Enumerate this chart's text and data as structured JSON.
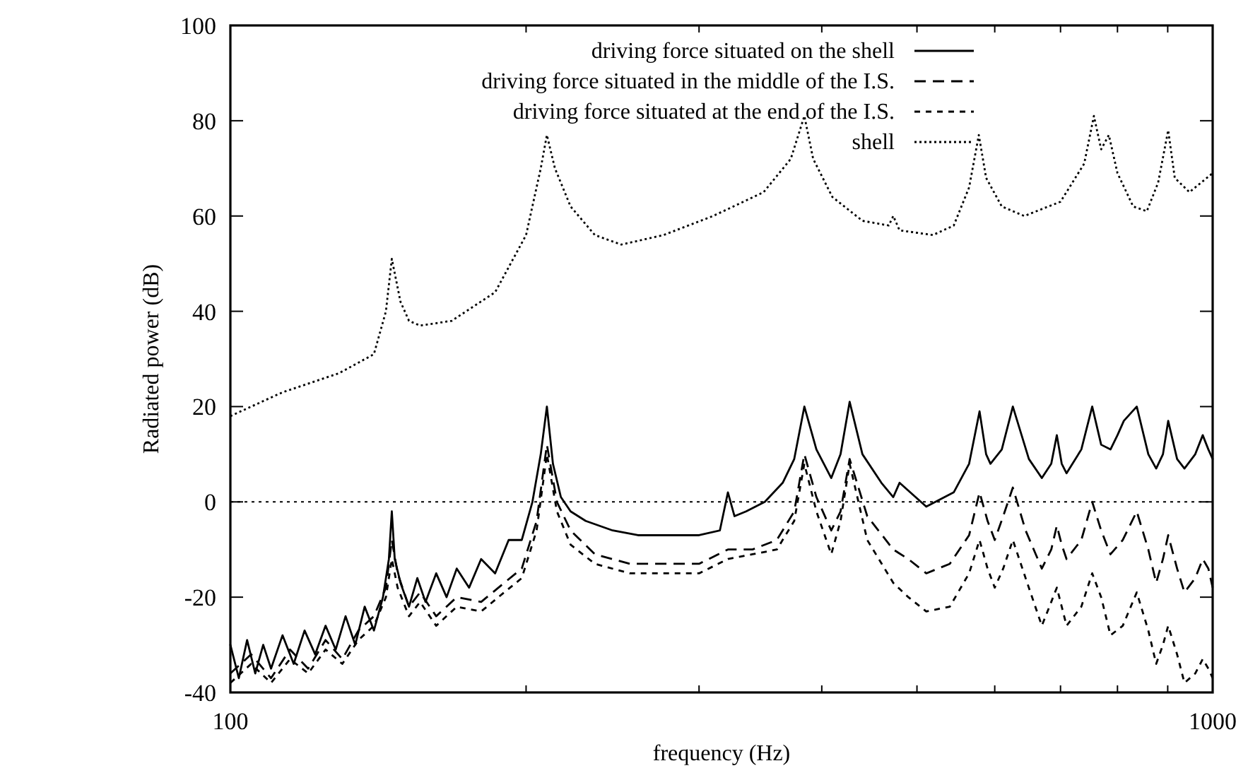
{
  "chart_data": {
    "type": "line",
    "xlabel": "frequency (Hz)",
    "ylabel": "Radiated power (dB)",
    "log": "x",
    "xlim": [
      100,
      1000
    ],
    "xticks": [
      100,
      {
        "value": 200,
        "label": null
      },
      {
        "value": 300,
        "label": null
      },
      {
        "value": 400,
        "label": null
      },
      {
        "value": 500,
        "label": null
      },
      {
        "value": 600,
        "label": null
      },
      {
        "value": 700,
        "label": null
      },
      {
        "value": 800,
        "label": null
      },
      {
        "value": 900,
        "label": null
      },
      1000
    ],
    "ylim": [
      -40,
      100
    ],
    "yticks": [
      -40,
      -20,
      0,
      20,
      40,
      60,
      80,
      100
    ],
    "grid": false,
    "legend": "top right",
    "ref_lines": [
      {
        "axis": "y",
        "value": 0,
        "color": "#000000",
        "line_style": "dotted"
      }
    ],
    "series": [
      {
        "name": "driving force situated on the shell",
        "color": "#000000",
        "line_style": "solid",
        "x": [
          100,
          102,
          104,
          106,
          108,
          110,
          113,
          116,
          119,
          122,
          125,
          128,
          131,
          134,
          137,
          140,
          143,
          145,
          146,
          147,
          149,
          152,
          155,
          158,
          162,
          166,
          170,
          175,
          180,
          186,
          192,
          198,
          203,
          207,
          210,
          213,
          217,
          222,
          230,
          245,
          260,
          280,
          300,
          315,
          321,
          326,
          335,
          350,
          365,
          375,
          384,
          395,
          409,
          418,
          427,
          440,
          460,
          473,
          480,
          511,
          545,
          565,
          579,
          588,
          594,
          610,
          626,
          650,
          670,
          685,
          694,
          702,
          710,
          735,
          754,
          770,
          787,
          800,
          812,
          837,
          860,
          876,
          890,
          901,
          920,
          936,
          960,
          977,
          990,
          1000
        ],
        "values": [
          -30,
          -37,
          -29,
          -36,
          -30,
          -35,
          -28,
          -34,
          -27,
          -32,
          -26,
          -31,
          -24,
          -30,
          -22,
          -27,
          -20,
          -12,
          -2,
          -12,
          -17,
          -22,
          -16,
          -21,
          -15,
          -20,
          -14,
          -18,
          -12,
          -15,
          -8,
          -8,
          0,
          10,
          20,
          8,
          1,
          -2,
          -4,
          -6,
          -7,
          -7,
          -7,
          -6,
          2,
          -3,
          -2,
          0,
          4,
          9,
          20,
          11,
          5,
          10,
          21,
          10,
          4,
          1,
          4,
          -1,
          2,
          8,
          19,
          10,
          8,
          11,
          20,
          9,
          5,
          8,
          14,
          8,
          6,
          11,
          20,
          12,
          11,
          14,
          17,
          20,
          10,
          7,
          10,
          17,
          9,
          7,
          10,
          14,
          11,
          9
        ]
      },
      {
        "name": "driving force situated in the middle of the I.S.",
        "color": "#000000",
        "line_style": "dashed",
        "x": [
          100,
          105,
          110,
          115,
          120,
          125,
          130,
          135,
          140,
          144,
          146,
          148,
          152,
          156,
          162,
          170,
          180,
          190,
          198,
          205,
          210,
          215,
          222,
          235,
          255,
          280,
          300,
          321,
          340,
          360,
          375,
          384,
          395,
          409,
          418,
          427,
          445,
          473,
          490,
          511,
          540,
          565,
          579,
          590,
          600,
          612,
          626,
          645,
          670,
          685,
          694,
          702,
          710,
          735,
          754,
          770,
          787,
          810,
          837,
          860,
          876,
          890,
          901,
          920,
          936,
          960,
          977,
          990,
          1000
        ],
        "values": [
          -36,
          -32,
          -37,
          -31,
          -35,
          -29,
          -33,
          -27,
          -24,
          -18,
          -8,
          -15,
          -22,
          -19,
          -24,
          -20,
          -21,
          -17,
          -14,
          -4,
          12,
          0,
          -6,
          -11,
          -13,
          -13,
          -13,
          -10,
          -10,
          -8,
          -2,
          10,
          1,
          -6,
          -2,
          9,
          -3,
          -10,
          -12,
          -15,
          -13,
          -7,
          2,
          -4,
          -8,
          -3,
          3,
          -6,
          -14,
          -10,
          -5,
          -9,
          -12,
          -8,
          0,
          -6,
          -11,
          -8,
          -2,
          -10,
          -17,
          -12,
          -7,
          -14,
          -19,
          -16,
          -12,
          -14,
          -18
        ]
      },
      {
        "name": "driving force situated at the end of the I.S.",
        "color": "#000000",
        "line_style": "dashed",
        "x": [
          100,
          105,
          110,
          115,
          120,
          125,
          130,
          135,
          140,
          144,
          146,
          148,
          152,
          156,
          162,
          170,
          180,
          190,
          198,
          205,
          210,
          215,
          222,
          235,
          255,
          280,
          300,
          321,
          340,
          360,
          375,
          384,
          395,
          409,
          418,
          427,
          445,
          473,
          490,
          511,
          540,
          565,
          579,
          590,
          600,
          612,
          626,
          645,
          670,
          685,
          694,
          702,
          710,
          735,
          754,
          770,
          787,
          810,
          837,
          860,
          876,
          890,
          901,
          920,
          936,
          960,
          977,
          990,
          1000
        ],
        "values": [
          -38,
          -34,
          -38,
          -33,
          -36,
          -31,
          -34,
          -29,
          -26,
          -20,
          -12,
          -18,
          -24,
          -21,
          -26,
          -22,
          -23,
          -19,
          -16,
          -6,
          10,
          -2,
          -9,
          -13,
          -15,
          -15,
          -15,
          -12,
          -11,
          -10,
          -4,
          8,
          -2,
          -11,
          -4,
          8,
          -8,
          -17,
          -20,
          -23,
          -22,
          -15,
          -8,
          -14,
          -18,
          -14,
          -8,
          -16,
          -26,
          -21,
          -18,
          -22,
          -26,
          -22,
          -15,
          -20,
          -28,
          -26,
          -19,
          -27,
          -34,
          -30,
          -26,
          -32,
          -38,
          -36,
          -33,
          -35,
          -37
        ]
      },
      {
        "name": "shell",
        "color": "#000000",
        "line_style": "dotted",
        "x": [
          100,
          113,
          129,
          140,
          144,
          146,
          149,
          152,
          156,
          168,
          186,
          200,
          207,
          210,
          214,
          222,
          235,
          250,
          276,
          310,
          349,
          372,
          384,
          392,
          410,
          440,
          468,
          473,
          480,
          519,
          545,
          565,
          578,
          588,
          610,
          643,
          700,
          740,
          757,
          770,
          784,
          800,
          830,
          857,
          880,
          901,
          915,
          947,
          1000
        ],
        "values": [
          18,
          23,
          27,
          31,
          40,
          51,
          42,
          38,
          37,
          38,
          44,
          56,
          70,
          77,
          70,
          62,
          56,
          54,
          56,
          60,
          65,
          72,
          81,
          72,
          64,
          59,
          58,
          60,
          57,
          56,
          58,
          66,
          77,
          68,
          62,
          60,
          63,
          71,
          81,
          74,
          77,
          69,
          62,
          61,
          67,
          78,
          68,
          65,
          69
        ]
      }
    ]
  }
}
